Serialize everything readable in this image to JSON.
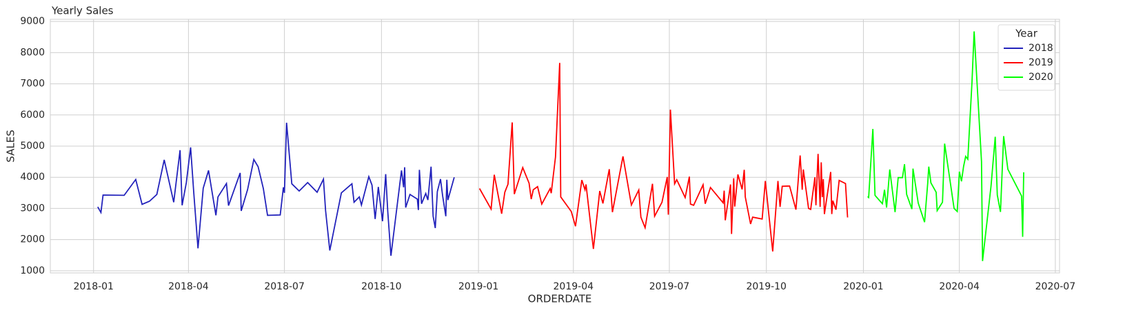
{
  "chart_data": {
    "type": "line",
    "title": "Yearly Sales",
    "xlabel": "ORDERDATE",
    "ylabel": "SALES",
    "legend_title": "Year",
    "legend": "upper right",
    "grid": true,
    "xlim": [
      "2017-11-21",
      "2020-07-05"
    ],
    "xticks": [
      "2018-01",
      "2018-04",
      "2018-07",
      "2018-10",
      "2019-01",
      "2019-04",
      "2019-07",
      "2019-10",
      "2020-01",
      "2020-04",
      "2020-07"
    ],
    "ylim": [
      930,
      9070
    ],
    "yticks": [
      1000,
      2000,
      3000,
      4000,
      5000,
      6000,
      7000,
      8000,
      9000
    ],
    "series": [
      {
        "name": "2018",
        "color": "#2222bb",
        "x": [
          "2018-01-05",
          "2018-01-08",
          "2018-01-10",
          "2018-01-30",
          "2018-02-10",
          "2018-02-16",
          "2018-02-23",
          "2018-03-02",
          "2018-03-09",
          "2018-03-18",
          "2018-03-24",
          "2018-03-26",
          "2018-03-30",
          "2018-04-03",
          "2018-04-06",
          "2018-04-10",
          "2018-04-15",
          "2018-04-20",
          "2018-04-27",
          "2018-04-29",
          "2018-05-07",
          "2018-05-09",
          "2018-05-20",
          "2018-05-21",
          "2018-05-27",
          "2018-06-02",
          "2018-06-06",
          "2018-06-11",
          "2018-06-15",
          "2018-06-27",
          "2018-06-30",
          "2018-07-01",
          "2018-07-03",
          "2018-07-08",
          "2018-07-15",
          "2018-07-23",
          "2018-08-01",
          "2018-08-07",
          "2018-08-09",
          "2018-08-13",
          "2018-08-24",
          "2018-09-03",
          "2018-09-05",
          "2018-09-10",
          "2018-09-12",
          "2018-09-19",
          "2018-09-22",
          "2018-09-25",
          "2018-09-28",
          "2018-10-02",
          "2018-10-05",
          "2018-10-07",
          "2018-10-10",
          "2018-10-20",
          "2018-10-22",
          "2018-10-23",
          "2018-10-24",
          "2018-10-28",
          "2018-11-04",
          "2018-11-05",
          "2018-11-06",
          "2018-11-08",
          "2018-11-12",
          "2018-11-14",
          "2018-11-17",
          "2018-11-19",
          "2018-11-21",
          "2018-11-23",
          "2018-11-26",
          "2018-11-28",
          "2018-12-01",
          "2018-12-02",
          "2018-12-03",
          "2018-12-09"
        ],
        "values": [
          3050,
          2870,
          3430,
          3420,
          3930,
          3130,
          3230,
          3450,
          4560,
          3200,
          4870,
          3100,
          3830,
          4960,
          3500,
          1720,
          3650,
          4220,
          2780,
          3370,
          3800,
          3090,
          4140,
          2920,
          3600,
          4570,
          4340,
          3640,
          2780,
          2790,
          3680,
          3500,
          5750,
          3790,
          3560,
          3830,
          3520,
          3940,
          2930,
          1650,
          3500,
          3790,
          3200,
          3370,
          3110,
          4020,
          3750,
          2660,
          3690,
          2590,
          4100,
          2900,
          1480,
          4220,
          3680,
          4320,
          3030,
          3450,
          3300,
          2950,
          4240,
          3150,
          3480,
          3270,
          4340,
          2750,
          2370,
          3540,
          3940,
          3400,
          2750,
          3920,
          3270,
          4000
        ]
      },
      {
        "name": "2019",
        "color": "#ff0000",
        "x": [
          "2019-01-02",
          "2019-01-13",
          "2019-01-16",
          "2019-01-23",
          "2019-01-26",
          "2019-01-29",
          "2019-02-02",
          "2019-02-04",
          "2019-02-12",
          "2019-02-18",
          "2019-02-20",
          "2019-02-22",
          "2019-02-26",
          "2019-03-02",
          "2019-03-10",
          "2019-03-11",
          "2019-03-15",
          "2019-03-19",
          "2019-03-20",
          "2019-03-30",
          "2019-04-03",
          "2019-04-09",
          "2019-04-12",
          "2019-04-13",
          "2019-04-20",
          "2019-04-26",
          "2019-04-29",
          "2019-05-05",
          "2019-05-08",
          "2019-05-18",
          "2019-05-26",
          "2019-06-02",
          "2019-06-04",
          "2019-06-08",
          "2019-06-15",
          "2019-06-17",
          "2019-06-24",
          "2019-06-29",
          "2019-06-30",
          "2019-07-02",
          "2019-07-06",
          "2019-07-08",
          "2019-07-16",
          "2019-07-20",
          "2019-07-21",
          "2019-07-24",
          "2019-08-02",
          "2019-08-04",
          "2019-08-09",
          "2019-08-21",
          "2019-08-22",
          "2019-08-23",
          "2019-08-28",
          "2019-08-29",
          "2019-08-31",
          "2019-09-01",
          "2019-09-04",
          "2019-09-08",
          "2019-09-10",
          "2019-09-11",
          "2019-09-16",
          "2019-09-18",
          "2019-09-27",
          "2019-09-30",
          "2019-10-07",
          "2019-10-12",
          "2019-10-14",
          "2019-10-16",
          "2019-10-23",
          "2019-10-29",
          "2019-11-02",
          "2019-11-04",
          "2019-11-05",
          "2019-11-10",
          "2019-11-12",
          "2019-11-16",
          "2019-11-17",
          "2019-11-19",
          "2019-11-21",
          "2019-11-22",
          "2019-11-23",
          "2019-11-24",
          "2019-11-25",
          "2019-12-01",
          "2019-12-02",
          "2019-12-03",
          "2019-12-06",
          "2019-12-09",
          "2019-12-15",
          "2019-12-17"
        ],
        "values": [
          3640,
          2980,
          4080,
          2830,
          3520,
          3780,
          5760,
          3460,
          4310,
          3810,
          3300,
          3600,
          3700,
          3140,
          3640,
          3490,
          4650,
          7670,
          3370,
          2900,
          2430,
          3910,
          3600,
          3770,
          1700,
          3560,
          3160,
          4260,
          2880,
          4670,
          3110,
          3590,
          2720,
          2380,
          3790,
          2750,
          3200,
          4010,
          2800,
          6170,
          3790,
          3920,
          3350,
          4020,
          3140,
          3100,
          3760,
          3150,
          3670,
          3180,
          3570,
          2620,
          3770,
          2180,
          3970,
          3060,
          4090,
          3610,
          4240,
          3370,
          2500,
          2720,
          2660,
          3880,
          1620,
          3880,
          3050,
          3710,
          3720,
          2960,
          4700,
          3600,
          4250,
          3000,
          2970,
          4000,
          3100,
          4750,
          3050,
          4480,
          3360,
          3940,
          2820,
          4170,
          2820,
          3250,
          2960,
          3900,
          3800,
          2710
        ]
      },
      {
        "name": "2020",
        "color": "#00ff00",
        "x": [
          "2020-01-05",
          "2020-01-06",
          "2020-01-10",
          "2020-01-12",
          "2020-01-19",
          "2020-01-21",
          "2020-01-23",
          "2020-01-26",
          "2020-01-31",
          "2020-02-03",
          "2020-02-07",
          "2020-02-09",
          "2020-02-11",
          "2020-02-16",
          "2020-02-17",
          "2020-02-22",
          "2020-02-28",
          "2020-03-02",
          "2020-03-03",
          "2020-03-05",
          "2020-03-10",
          "2020-03-11",
          "2020-03-16",
          "2020-03-18",
          "2020-03-27",
          "2020-03-30",
          "2020-04-01",
          "2020-04-03",
          "2020-04-05",
          "2020-04-07",
          "2020-04-09",
          "2020-04-13",
          "2020-04-15",
          "2020-04-22",
          "2020-04-23",
          "2020-05-01",
          "2020-05-05",
          "2020-05-07",
          "2020-05-10",
          "2020-05-13",
          "2020-05-17",
          "2020-05-30",
          "2020-05-31",
          "2020-06-01"
        ],
        "values": [
          3380,
          3350,
          5550,
          3420,
          3150,
          3600,
          3030,
          4250,
          2880,
          3990,
          3990,
          4420,
          3450,
          2980,
          4280,
          3170,
          2560,
          3820,
          4340,
          3820,
          3520,
          2930,
          3200,
          5080,
          3000,
          2900,
          4180,
          3870,
          4350,
          4670,
          4580,
          7060,
          8680,
          4500,
          1310,
          3720,
          5300,
          3430,
          2890,
          5320,
          4260,
          3400,
          2090,
          4160
        ]
      }
    ]
  }
}
